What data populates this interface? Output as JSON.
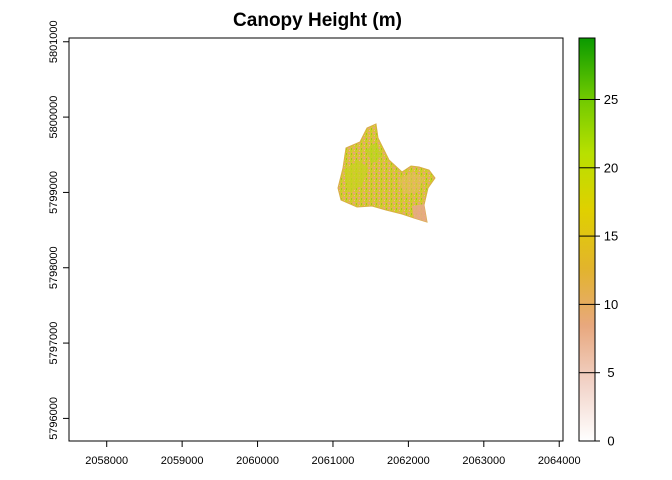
{
  "title": "Canopy Height (m)",
  "map": {
    "x_ticks": [
      "2058000",
      "2059000",
      "2060000",
      "2061000",
      "2062000",
      "2063000",
      "2064000"
    ],
    "y_ticks": [
      "5796000",
      "5797000",
      "5798000",
      "5799000",
      "5800000",
      "5801000"
    ],
    "x_range": [
      2057500,
      2064050
    ],
    "y_range": [
      5795700,
      5801050
    ],
    "legend_ticks": [
      "0",
      "5",
      "10",
      "15",
      "20",
      "25"
    ],
    "legend_range": [
      0,
      29.5
    ],
    "color_ramp": [
      "#ffffff",
      "#f2d3c8",
      "#e8a87e",
      "#e2b42c",
      "#e0d000",
      "#b8e000",
      "#6cc800",
      "#0a9a00"
    ]
  }
}
